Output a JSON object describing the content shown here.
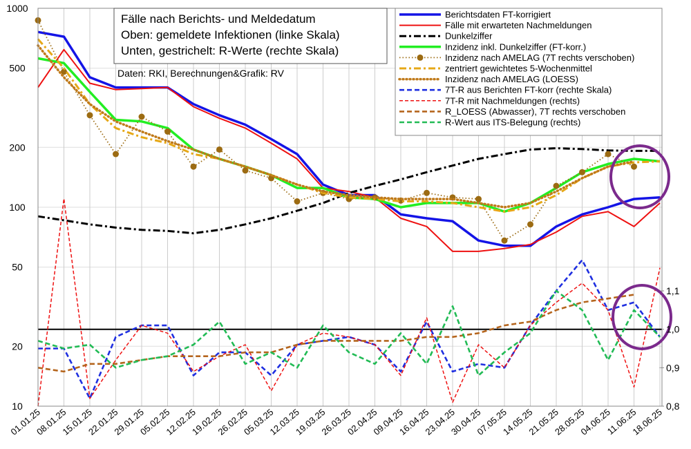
{
  "chart_data": {
    "type": "line",
    "title_lines": [
      "Fälle nach Berichts- und Meldedatum",
      "Oben: gemeldete Infektionen (linke Skala)",
      "Unten, gestrichelt: R-Werte (rechte Skala)"
    ],
    "annotation": "Daten: RKI, Berechnungen&Grafik: RV",
    "categories": [
      "01.01.25",
      "08.01.25",
      "15.01.25",
      "22.01.25",
      "29.01.25",
      "05.02.25",
      "12.02.25",
      "19.02.25",
      "26.02.25",
      "05.03.25",
      "12.03.25",
      "19.03.25",
      "26.03.25",
      "02.04.25",
      "09.04.25",
      "16.04.25",
      "23.04.25",
      "30.04.25",
      "07.05.25",
      "14.05.25",
      "21.05.25",
      "28.05.25",
      "04.06.25",
      "11.06.25",
      "18.06.25"
    ],
    "ylim": [
      10,
      1000
    ],
    "ylog": true,
    "yticks": [
      10,
      20,
      50,
      100,
      200,
      500,
      1000
    ],
    "y2lim": [
      0.8,
      1.835
    ],
    "y2ticks": [
      {
        "value": 0.8,
        "label": "0,8"
      },
      {
        "value": 0.9,
        "label": "0,9"
      },
      {
        "value": 1.0,
        "label": "1,0"
      },
      {
        "value": 1.1,
        "label": "1,1"
      }
    ],
    "y2_reference": 1.0,
    "grid": true,
    "legend": "upper right",
    "series": [
      {
        "name": "Berichtsdaten FT-korrigiert",
        "color": "#1414e6",
        "style": "solid",
        "values": [
          760,
          720,
          450,
          400,
          400,
          400,
          330,
          290,
          260,
          220,
          185,
          130,
          115,
          115,
          92,
          88,
          85,
          68,
          64,
          64,
          80,
          92,
          100,
          110,
          112
        ]
      },
      {
        "name": "Fälle mit erwarteten Nachmeldungen",
        "color": "#ee1111",
        "style": "solid-thin",
        "values": [
          400,
          620,
          420,
          390,
          395,
          400,
          320,
          280,
          250,
          210,
          175,
          125,
          120,
          112,
          88,
          80,
          60,
          60,
          62,
          65,
          75,
          90,
          95,
          80,
          105
        ]
      },
      {
        "name": "Dunkelziffer",
        "color": "#000000",
        "style": "dashdot",
        "values": [
          90,
          86,
          82,
          79,
          77,
          76,
          74,
          77,
          82,
          88,
          96,
          105,
          118,
          128,
          138,
          150,
          162,
          175,
          185,
          195,
          198,
          196,
          193,
          192,
          192
        ]
      },
      {
        "name": "Inzidenz inkl. Dunkelziffer (FT-korr.)",
        "color": "#22ee22",
        "style": "solid",
        "values": [
          560,
          530,
          380,
          275,
          270,
          250,
          195,
          175,
          160,
          145,
          125,
          125,
          112,
          110,
          100,
          105,
          105,
          105,
          95,
          105,
          125,
          150,
          165,
          175,
          170
        ]
      },
      {
        "name": "Inzidenz nach AMELAG (7T rechts verschoben)",
        "color": "#9c6b12",
        "style": "dotted-thin",
        "markers": true,
        "values": [
          870,
          480,
          290,
          185,
          285,
          240,
          160,
          195,
          153,
          140,
          107,
          118,
          110,
          112,
          108,
          118,
          112,
          110,
          68,
          82,
          128,
          150,
          185,
          160,
          null
        ]
      },
      {
        "name": "zentriert gewichtetes 5-Wochenmittel",
        "color": "#e6a817",
        "style": "dashdot",
        "values": [
          700,
          500,
          330,
          250,
          225,
          210,
          185,
          175,
          160,
          145,
          130,
          118,
          112,
          110,
          107,
          107,
          105,
          100,
          95,
          100,
          115,
          140,
          160,
          168,
          170
        ]
      },
      {
        "name": "Inzidenz nach AMELAG (LOESS)",
        "color": "#c07a1a",
        "style": "dotted",
        "values": [
          650,
          450,
          330,
          270,
          240,
          215,
          195,
          175,
          160,
          145,
          130,
          120,
          115,
          112,
          110,
          110,
          110,
          105,
          100,
          105,
          120,
          140,
          160,
          170,
          null
        ]
      },
      {
        "name": "7T-R aus Berichten FT-korr (rechte Skala)",
        "color": "#1f2fe0",
        "style": "dashed",
        "axis": "y2",
        "values": [
          0.95,
          0.95,
          0.82,
          0.98,
          1.01,
          1.01,
          0.88,
          0.94,
          0.94,
          0.88,
          0.96,
          0.97,
          0.98,
          0.96,
          0.89,
          1.02,
          0.89,
          0.91,
          0.9,
          1.01,
          1.1,
          1.18,
          1.05,
          1.07,
          0.98
        ]
      },
      {
        "name": "7T-R mit Nachmeldungen (rechts)",
        "color": "#ee1111",
        "style": "dashed-thin",
        "axis": "y2",
        "values": [
          0.8,
          1.34,
          0.82,
          0.92,
          1.01,
          0.99,
          0.89,
          0.93,
          0.96,
          0.84,
          0.96,
          0.99,
          0.98,
          0.96,
          0.88,
          1.03,
          0.81,
          0.96,
          0.9,
          1.01,
          1.07,
          1.12,
          1.05,
          0.85,
          1.16
        ]
      },
      {
        "name": "R_LOESS (Abwasser), 7T rechts verschoben",
        "color": "#b5651d",
        "style": "dashed",
        "axis": "y2",
        "values": [
          0.9,
          0.89,
          0.91,
          0.91,
          0.92,
          0.93,
          0.93,
          0.93,
          0.94,
          0.94,
          0.96,
          0.97,
          0.97,
          0.97,
          0.97,
          0.98,
          0.98,
          0.99,
          1.01,
          1.02,
          1.05,
          1.07,
          1.08,
          1.09,
          null
        ]
      },
      {
        "name": "R-Wert aus ITS-Belegung (rechts)",
        "color": "#22bb55",
        "style": "dashed",
        "axis": "y2",
        "values": [
          0.97,
          0.95,
          0.96,
          0.9,
          0.92,
          0.93,
          0.96,
          1.02,
          0.91,
          0.94,
          0.9,
          1.01,
          0.94,
          0.91,
          0.99,
          0.91,
          1.06,
          0.88,
          0.94,
          0.99,
          1.1,
          1.05,
          0.92,
          1.05,
          0.98
        ]
      }
    ]
  }
}
